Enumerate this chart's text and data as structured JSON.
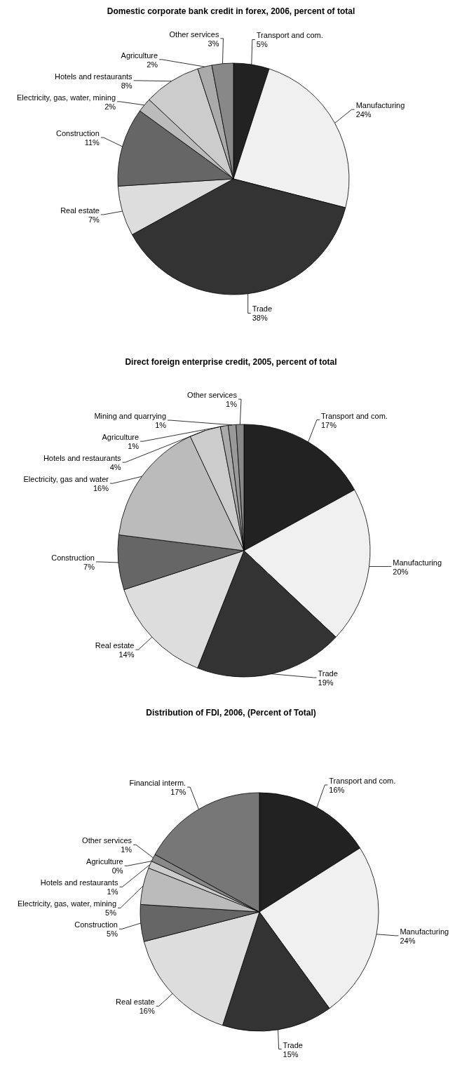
{
  "chart_data": [
    {
      "type": "pie",
      "title": "Domestic corporate bank credit in forex, 2006, percent of total",
      "categories": [
        "Transport and com.",
        "Manufacturing",
        "Trade",
        "Real estate",
        "Construction",
        "Electricity, gas, water, mining",
        "Hotels and restaurants",
        "Agriculture",
        "Other services"
      ],
      "values": [
        5,
        24,
        38,
        7,
        11,
        2,
        8,
        2,
        3
      ],
      "value_labels": [
        "5%",
        "24%",
        "38%",
        "7%",
        "11%",
        "2%",
        "8%",
        "2%",
        "3%"
      ],
      "colors": [
        "#222222",
        "#f0f0f0",
        "#333333",
        "#dddddd",
        "#666666",
        "#bbbbbb",
        "#cccccc",
        "#aaaaaa",
        "#888888"
      ]
    },
    {
      "type": "pie",
      "title": "Direct foreign enterprise credit, 2005, percent of total",
      "categories": [
        "Transport and com.",
        "Manufacturing",
        "Trade",
        "Real estate",
        "Construction",
        "Electricity, gas and water",
        "Hotels and restaurants",
        "Agriculture",
        "Mining and quarrying",
        "Other services"
      ],
      "values": [
        17,
        20,
        19,
        14,
        7,
        16,
        4,
        1,
        1,
        1
      ],
      "value_labels": [
        "17%",
        "20%",
        "19%",
        "14%",
        "7%",
        "16%",
        "4%",
        "1%",
        "1%",
        "1%"
      ],
      "colors": [
        "#222222",
        "#f0f0f0",
        "#333333",
        "#dddddd",
        "#666666",
        "#bbbbbb",
        "#cccccc",
        "#aaaaaa",
        "#999999",
        "#888888"
      ]
    },
    {
      "type": "pie",
      "title": "Distribution of FDI, 2006, (Percent of Total)",
      "categories": [
        "Transport and com.",
        "Manufacturing",
        "Trade",
        "Real estate",
        "Construction",
        "Electricity, gas, water, mining",
        "Hotels and restaurants",
        "Agriculture",
        "Other services",
        "Financial interm."
      ],
      "values": [
        16,
        24,
        15,
        16,
        5,
        5,
        1,
        0,
        1,
        17
      ],
      "value_labels": [
        "16%",
        "24%",
        "15%",
        "16%",
        "5%",
        "5%",
        "1%",
        "0%",
        "1%",
        "17%"
      ],
      "colors": [
        "#222222",
        "#f0f0f0",
        "#333333",
        "#dddddd",
        "#666666",
        "#bbbbbb",
        "#cccccc",
        "#aaaaaa",
        "#888888",
        "#777777"
      ]
    }
  ]
}
